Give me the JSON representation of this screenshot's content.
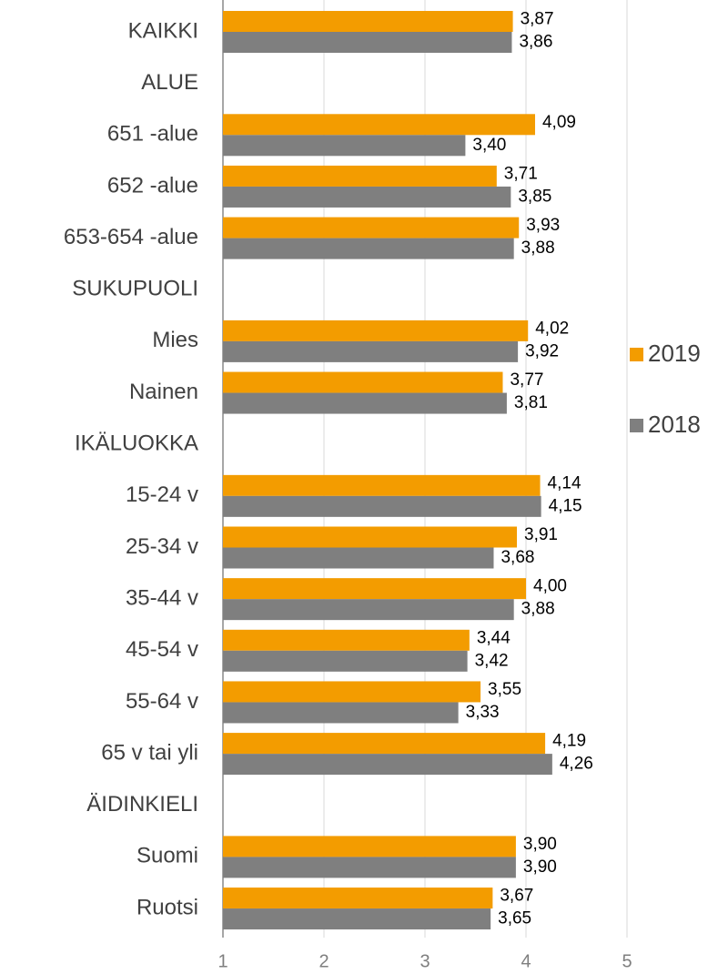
{
  "chart_data": {
    "type": "hbar",
    "categories": [
      "KAIKKI",
      "ALUE",
      "651 -alue",
      "652 -alue",
      "653-654 -alue",
      "SUKUPUOLI",
      "Mies",
      "Nainen",
      "IKÄLUOKKA",
      "15-24 v",
      "25-34 v",
      "35-44 v",
      "45-54 v",
      "55-64 v",
      "65 v tai yli",
      "ÄIDINKIELI",
      "Suomi",
      "Ruotsi"
    ],
    "series": [
      {
        "name": "2019",
        "color": "#f39c00",
        "values": [
          3.87,
          null,
          4.09,
          3.71,
          3.93,
          null,
          4.02,
          3.77,
          null,
          4.14,
          3.91,
          4.0,
          3.44,
          3.55,
          4.19,
          null,
          3.9,
          3.67
        ],
        "value_labels": [
          "3,87",
          null,
          "4,09",
          "3,71",
          "3,93",
          null,
          "4,02",
          "3,77",
          null,
          "4,14",
          "3,91",
          "4,00",
          "3,44",
          "3,55",
          "4,19",
          null,
          "3,90",
          "3,67"
        ]
      },
      {
        "name": "2018",
        "color": "#7f7f7f",
        "values": [
          3.86,
          null,
          3.4,
          3.85,
          3.88,
          null,
          3.92,
          3.81,
          null,
          4.15,
          3.68,
          3.88,
          3.42,
          3.33,
          4.26,
          null,
          3.9,
          3.65
        ],
        "value_labels": [
          "3,86",
          null,
          "3,40",
          "3,85",
          "3,88",
          null,
          "3,92",
          "3,81",
          null,
          "4,15",
          "3,68",
          "3,88",
          "3,42",
          "3,33",
          "4,26",
          null,
          "3,90",
          "3,65"
        ]
      }
    ],
    "xlim": [
      1,
      5
    ],
    "xticks": [
      1,
      2,
      3,
      4,
      5
    ],
    "grid": true,
    "legend": "right"
  }
}
